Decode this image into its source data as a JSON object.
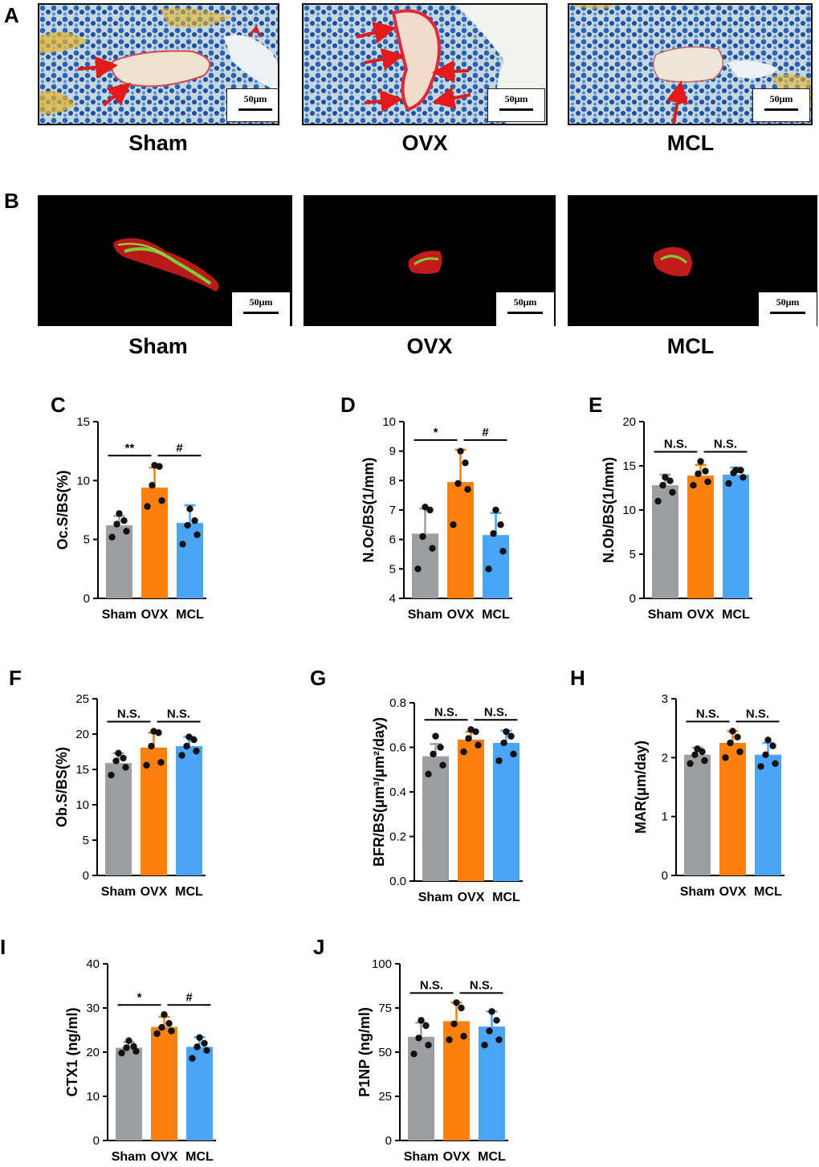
{
  "panels": {
    "A": {
      "letter": "A",
      "groups": [
        "Sham",
        "OVX",
        "MCL"
      ],
      "scale_label": "50μm"
    },
    "B": {
      "letter": "B",
      "groups": [
        "Sham",
        "OVX",
        "MCL"
      ],
      "scale_label": "50μm"
    }
  },
  "colors": {
    "sham": "#9d9ea2",
    "ovx": "#fb8010",
    "mcl": "#4aa5f7",
    "dot": "#111111"
  },
  "chart_data": [
    {
      "id": "C",
      "type": "bar",
      "letter": "C",
      "ylabel": "Oc.S/BS(%)",
      "ylim": [
        0,
        15
      ],
      "ticks": [
        0,
        5,
        10,
        15
      ],
      "categories": [
        "Sham",
        "OVX",
        "MCL"
      ],
      "values": [
        6.2,
        9.4,
        6.4
      ],
      "errors": [
        0.8,
        1.7,
        1.5
      ],
      "points": [
        [
          5.2,
          5.7,
          6.3,
          6.6,
          7.2
        ],
        [
          7.8,
          8.3,
          9.6,
          11.2,
          11.3
        ],
        [
          4.6,
          5.4,
          6.2,
          6.6,
          7.6
        ]
      ],
      "significance": [
        {
          "from": 0,
          "to": 1,
          "label": "**"
        },
        {
          "from": 1,
          "to": 2,
          "label": "#"
        }
      ]
    },
    {
      "id": "D",
      "type": "bar",
      "letter": "D",
      "ylabel": "N.Oc/BS(1/mm)",
      "ylim": [
        4,
        10
      ],
      "ticks": [
        4,
        5,
        6,
        7,
        8,
        9,
        10
      ],
      "categories": [
        "Sham",
        "OVX",
        "MCL"
      ],
      "values": [
        6.2,
        7.95,
        6.15
      ],
      "errors": [
        0.85,
        1.1,
        0.75
      ],
      "points": [
        [
          5.0,
          5.7,
          6.1,
          7.0,
          7.1
        ],
        [
          6.5,
          7.7,
          7.9,
          8.6,
          9.0
        ],
        [
          5.0,
          5.6,
          6.2,
          6.5,
          7.0
        ]
      ],
      "significance": [
        {
          "from": 0,
          "to": 1,
          "label": "*"
        },
        {
          "from": 1,
          "to": 2,
          "label": "#"
        }
      ]
    },
    {
      "id": "E",
      "type": "bar",
      "letter": "E",
      "ylabel": "N.Ob/BS(1/mm)",
      "ylim": [
        0,
        20
      ],
      "ticks": [
        0,
        5,
        10,
        15,
        20
      ],
      "categories": [
        "Sham",
        "OVX",
        "MCL"
      ],
      "values": [
        12.8,
        13.9,
        14.0
      ],
      "errors": [
        1.2,
        1.2,
        0.8
      ],
      "points": [
        [
          11.0,
          12.0,
          12.8,
          13.3,
          13.7
        ],
        [
          12.8,
          13.2,
          14.1,
          14.4,
          15.5
        ],
        [
          13.0,
          13.7,
          14.2,
          14.5,
          14.5
        ]
      ],
      "significance": [
        {
          "from": 0,
          "to": 1,
          "label": "N.S."
        },
        {
          "from": 1,
          "to": 2,
          "label": "N.S."
        }
      ]
    },
    {
      "id": "F",
      "type": "bar",
      "letter": "F",
      "ylabel": "Ob.S/BS(%)",
      "ylim": [
        0,
        25
      ],
      "ticks": [
        0,
        5,
        10,
        15,
        20,
        25
      ],
      "categories": [
        "Sham",
        "OVX",
        "MCL"
      ],
      "values": [
        15.9,
        18.1,
        18.3
      ],
      "errors": [
        1.4,
        2.1,
        1.3
      ],
      "points": [
        [
          14.2,
          15.3,
          16.2,
          16.6,
          17.3
        ],
        [
          15.6,
          16.0,
          18.3,
          20.2,
          20.4
        ],
        [
          17.0,
          17.6,
          18.3,
          19.2,
          19.6
        ]
      ],
      "significance": [
        {
          "from": 0,
          "to": 1,
          "label": "N.S."
        },
        {
          "from": 1,
          "to": 2,
          "label": "N.S."
        }
      ]
    },
    {
      "id": "G",
      "type": "bar",
      "letter": "G",
      "ylabel": "BFR/BS(μm³/μm²/day)",
      "ylim": [
        0,
        0.8
      ],
      "ticks": [
        0.0,
        0.2,
        0.4,
        0.6,
        0.8
      ],
      "categories": [
        "Sham",
        "OVX",
        "MCL"
      ],
      "values": [
        0.56,
        0.635,
        0.62
      ],
      "errors": [
        0.055,
        0.035,
        0.055
      ],
      "points": [
        [
          0.48,
          0.52,
          0.57,
          0.6,
          0.65
        ],
        [
          0.58,
          0.61,
          0.64,
          0.67,
          0.68
        ],
        [
          0.54,
          0.57,
          0.62,
          0.65,
          0.67
        ]
      ],
      "significance": [
        {
          "from": 0,
          "to": 1,
          "label": "N.S."
        },
        {
          "from": 1,
          "to": 2,
          "label": "N.S."
        }
      ]
    },
    {
      "id": "H",
      "type": "bar",
      "letter": "H",
      "ylabel": "MAR(μm/day)",
      "ylim": [
        0,
        3
      ],
      "ticks": [
        0,
        1,
        2,
        3
      ],
      "categories": [
        "Sham",
        "OVX",
        "MCL"
      ],
      "values": [
        2.05,
        2.25,
        2.05
      ],
      "errors": [
        0.12,
        0.2,
        0.2
      ],
      "points": [
        [
          1.9,
          1.95,
          2.05,
          2.1,
          2.15
        ],
        [
          2.0,
          2.1,
          2.25,
          2.35,
          2.45
        ],
        [
          1.85,
          1.9,
          2.05,
          2.2,
          2.3
        ]
      ],
      "significance": [
        {
          "from": 0,
          "to": 1,
          "label": "N.S."
        },
        {
          "from": 1,
          "to": 2,
          "label": "N.S."
        }
      ]
    },
    {
      "id": "I",
      "type": "bar",
      "letter": "I",
      "ylabel": "CTX1 (ng/ml)",
      "ylim": [
        0,
        40
      ],
      "ticks": [
        0,
        10,
        20,
        30,
        40
      ],
      "categories": [
        "Sham",
        "OVX",
        "MCL"
      ],
      "values": [
        21.0,
        25.7,
        21.2
      ],
      "errors": [
        1.3,
        2.3,
        2.2
      ],
      "points": [
        [
          19.8,
          20.2,
          21.0,
          21.3,
          22.6
        ],
        [
          24.2,
          24.8,
          25.6,
          26.5,
          28.5
        ],
        [
          18.6,
          20.4,
          21.2,
          22.0,
          23.3
        ]
      ],
      "significance": [
        {
          "from": 0,
          "to": 1,
          "label": "*"
        },
        {
          "from": 1,
          "to": 2,
          "label": "#"
        }
      ]
    },
    {
      "id": "J",
      "type": "bar",
      "letter": "J",
      "ylabel": "P1NP (ng/ml)",
      "ylim": [
        0,
        100
      ],
      "ticks": [
        0,
        25,
        50,
        75,
        100
      ],
      "categories": [
        "Sham",
        "OVX",
        "MCL"
      ],
      "values": [
        58.7,
        67.5,
        64.5
      ],
      "errors": [
        8.0,
        10.5,
        8.5
      ],
      "points": [
        [
          49,
          54,
          58,
          65,
          68
        ],
        [
          57,
          59,
          66,
          75,
          78
        ],
        [
          54,
          57,
          62,
          68,
          73
        ]
      ],
      "significance": [
        {
          "from": 0,
          "to": 1,
          "label": "N.S."
        },
        {
          "from": 1,
          "to": 2,
          "label": "N.S."
        }
      ]
    }
  ]
}
